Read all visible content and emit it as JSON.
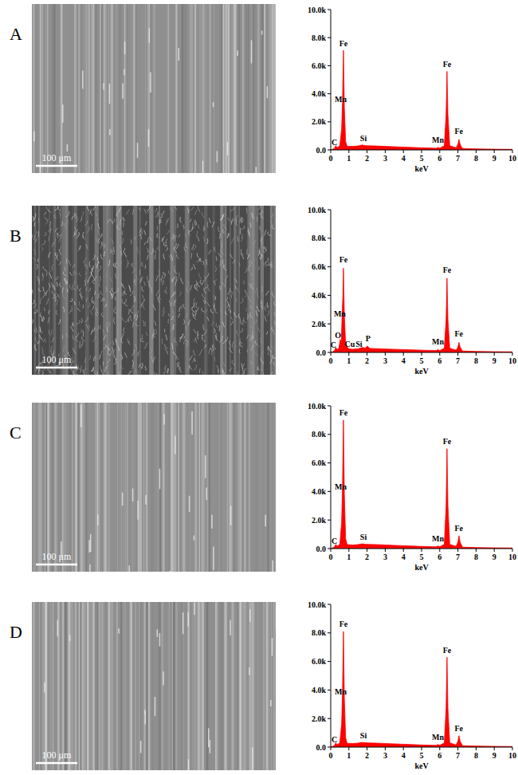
{
  "panels": [
    {
      "label": "A",
      "scale_bar": "100 μm"
    },
    {
      "label": "B",
      "scale_bar": "100 μm"
    },
    {
      "label": "C",
      "scale_bar": "100 μm"
    },
    {
      "label": "D",
      "scale_bar": "100 μm"
    }
  ],
  "chart_data": [
    {
      "type": "area",
      "color": "#ff0000",
      "x_label": "keV",
      "x": [
        0,
        0.2,
        0.28,
        0.35,
        0.5,
        0.6,
        0.65,
        0.7,
        0.75,
        0.82,
        0.9,
        1.2,
        1.5,
        1.74,
        1.9,
        2.5,
        3,
        4,
        5,
        5.8,
        5.9,
        6.0,
        6.25,
        6.35,
        6.4,
        6.45,
        6.55,
        6.9,
        7.0,
        7.06,
        7.12,
        7.25,
        8,
        9,
        10
      ],
      "values": [
        0,
        100,
        300,
        150,
        300,
        1500,
        3500,
        7100,
        3000,
        600,
        250,
        250,
        280,
        350,
        300,
        280,
        250,
        200,
        150,
        120,
        180,
        120,
        300,
        2500,
        5600,
        2500,
        300,
        150,
        400,
        750,
        400,
        100,
        70,
        50,
        40
      ],
      "xlim": [
        0,
        10
      ],
      "xticks": [
        0,
        1,
        2,
        3,
        4,
        5,
        6,
        7,
        8,
        9,
        10
      ],
      "ylim": [
        0,
        10000
      ],
      "yticks": [
        {
          "value": 0,
          "label": "0.0"
        },
        {
          "value": 2000,
          "label": "2.0k"
        },
        {
          "value": 4000,
          "label": "4.0k"
        },
        {
          "value": 6000,
          "label": "6.0k"
        },
        {
          "value": 8000,
          "label": "8.0k"
        },
        {
          "value": 10000,
          "label": "10.0k"
        }
      ],
      "annotations": [
        {
          "text": "Fe",
          "x": 0.7,
          "y": 7300
        },
        {
          "text": "Mn",
          "x": 0.55,
          "y": 3300
        },
        {
          "text": "C",
          "x": 0.2,
          "y": 200
        },
        {
          "text": "Si",
          "x": 1.8,
          "y": 500
        },
        {
          "text": "Mn",
          "x": 5.9,
          "y": 400
        },
        {
          "text": "Fe",
          "x": 6.4,
          "y": 5800
        },
        {
          "text": "Fe",
          "x": 7.05,
          "y": 1000
        }
      ]
    },
    {
      "type": "area",
      "color": "#ff0000",
      "x_label": "keV",
      "x": [
        0,
        0.2,
        0.28,
        0.35,
        0.45,
        0.52,
        0.58,
        0.63,
        0.67,
        0.7,
        0.75,
        0.82,
        0.93,
        1.0,
        1.2,
        1.5,
        1.74,
        1.9,
        2.01,
        2.15,
        2.5,
        3,
        4,
        5,
        5.8,
        5.9,
        6.0,
        6.25,
        6.35,
        6.4,
        6.45,
        6.55,
        6.9,
        7.0,
        7.06,
        7.12,
        7.25,
        8,
        9,
        10
      ],
      "values": [
        0,
        100,
        350,
        200,
        300,
        900,
        700,
        2700,
        4000,
        5900,
        2600,
        600,
        350,
        250,
        220,
        250,
        350,
        300,
        450,
        280,
        260,
        240,
        200,
        160,
        130,
        200,
        130,
        300,
        2300,
        5200,
        2300,
        300,
        150,
        380,
        700,
        380,
        100,
        70,
        50,
        40
      ],
      "xlim": [
        0,
        10
      ],
      "xticks": [
        0,
        1,
        2,
        3,
        4,
        5,
        6,
        7,
        8,
        9,
        10
      ],
      "ylim": [
        0,
        10000
      ],
      "yticks": [
        {
          "value": 0,
          "label": "0.0"
        },
        {
          "value": 2000,
          "label": "2.0k"
        },
        {
          "value": 4000,
          "label": "4.0k"
        },
        {
          "value": 6000,
          "label": "6.0k"
        },
        {
          "value": 8000,
          "label": "8.0k"
        },
        {
          "value": 10000,
          "label": "10.0k"
        }
      ],
      "annotations": [
        {
          "text": "Fe",
          "x": 0.7,
          "y": 6200
        },
        {
          "text": "Mn",
          "x": 0.5,
          "y": 2400
        },
        {
          "text": "O",
          "x": 0.4,
          "y": 900
        },
        {
          "text": "C",
          "x": 0.15,
          "y": 200
        },
        {
          "text": "Cu",
          "x": 1.05,
          "y": 300
        },
        {
          "text": "Si",
          "x": 1.55,
          "y": 300
        },
        {
          "text": "P",
          "x": 2.05,
          "y": 650
        },
        {
          "text": "Mn",
          "x": 5.9,
          "y": 450
        },
        {
          "text": "Fe",
          "x": 6.4,
          "y": 5500
        },
        {
          "text": "Fe",
          "x": 7.05,
          "y": 1000
        }
      ]
    },
    {
      "type": "area",
      "color": "#ff0000",
      "x_label": "keV",
      "x": [
        0,
        0.2,
        0.28,
        0.35,
        0.5,
        0.6,
        0.65,
        0.7,
        0.75,
        0.82,
        0.9,
        1.2,
        1.5,
        1.74,
        1.9,
        2.5,
        3,
        4,
        5,
        5.8,
        5.9,
        6.0,
        6.25,
        6.35,
        6.4,
        6.45,
        6.55,
        6.9,
        7.0,
        7.06,
        7.12,
        7.25,
        8,
        9,
        10
      ],
      "values": [
        0,
        100,
        300,
        150,
        300,
        1800,
        4500,
        9000,
        3800,
        700,
        280,
        250,
        280,
        330,
        300,
        280,
        250,
        200,
        150,
        120,
        180,
        120,
        300,
        3000,
        7000,
        3000,
        300,
        150,
        450,
        900,
        450,
        100,
        70,
        50,
        40
      ],
      "xlim": [
        0,
        10
      ],
      "xticks": [
        0,
        1,
        2,
        3,
        4,
        5,
        6,
        7,
        8,
        9,
        10
      ],
      "ylim": [
        0,
        10000
      ],
      "yticks": [
        {
          "value": 0,
          "label": "0.0"
        },
        {
          "value": 2000,
          "label": "2.0k"
        },
        {
          "value": 4000,
          "label": "4.0k"
        },
        {
          "value": 6000,
          "label": "6.0k"
        },
        {
          "value": 8000,
          "label": "8.0k"
        },
        {
          "value": 10000,
          "label": "10.0k"
        }
      ],
      "annotations": [
        {
          "text": "Fe",
          "x": 0.7,
          "y": 9200
        },
        {
          "text": "Mn",
          "x": 0.55,
          "y": 4000
        },
        {
          "text": "C",
          "x": 0.2,
          "y": 200
        },
        {
          "text": "Si",
          "x": 1.8,
          "y": 500
        },
        {
          "text": "Mn",
          "x": 5.9,
          "y": 400
        },
        {
          "text": "Fe",
          "x": 6.4,
          "y": 7200
        },
        {
          "text": "Fe",
          "x": 7.05,
          "y": 1100
        }
      ]
    },
    {
      "type": "area",
      "color": "#ff0000",
      "x_label": "keV",
      "x": [
        0,
        0.2,
        0.28,
        0.35,
        0.5,
        0.6,
        0.65,
        0.7,
        0.75,
        0.82,
        0.9,
        1.2,
        1.5,
        1.74,
        1.9,
        2.5,
        3,
        4,
        5,
        5.8,
        5.9,
        6.0,
        6.25,
        6.35,
        6.4,
        6.45,
        6.55,
        6.9,
        7.0,
        7.06,
        7.12,
        7.25,
        8,
        9,
        10
      ],
      "values": [
        0,
        100,
        300,
        150,
        300,
        1600,
        4000,
        8100,
        3400,
        650,
        260,
        250,
        280,
        330,
        300,
        280,
        250,
        200,
        150,
        120,
        180,
        120,
        300,
        2700,
        6300,
        2700,
        300,
        150,
        420,
        800,
        420,
        100,
        70,
        50,
        40
      ],
      "xlim": [
        0,
        10
      ],
      "xticks": [
        0,
        1,
        2,
        3,
        4,
        5,
        6,
        7,
        8,
        9,
        10
      ],
      "ylim": [
        0,
        10000
      ],
      "yticks": [
        {
          "value": 0,
          "label": "0.0"
        },
        {
          "value": 2000,
          "label": "2.0k"
        },
        {
          "value": 4000,
          "label": "4.0k"
        },
        {
          "value": 6000,
          "label": "6.0k"
        },
        {
          "value": 8000,
          "label": "8.0k"
        },
        {
          "value": 10000,
          "label": "10.0k"
        }
      ],
      "annotations": [
        {
          "text": "Fe",
          "x": 0.7,
          "y": 8300
        },
        {
          "text": "Mn",
          "x": 0.55,
          "y": 3600
        },
        {
          "text": "C",
          "x": 0.2,
          "y": 200
        },
        {
          "text": "Si",
          "x": 1.8,
          "y": 500
        },
        {
          "text": "Mn",
          "x": 5.9,
          "y": 400
        },
        {
          "text": "Fe",
          "x": 6.4,
          "y": 6500
        },
        {
          "text": "Fe",
          "x": 7.05,
          "y": 1000
        }
      ]
    }
  ]
}
